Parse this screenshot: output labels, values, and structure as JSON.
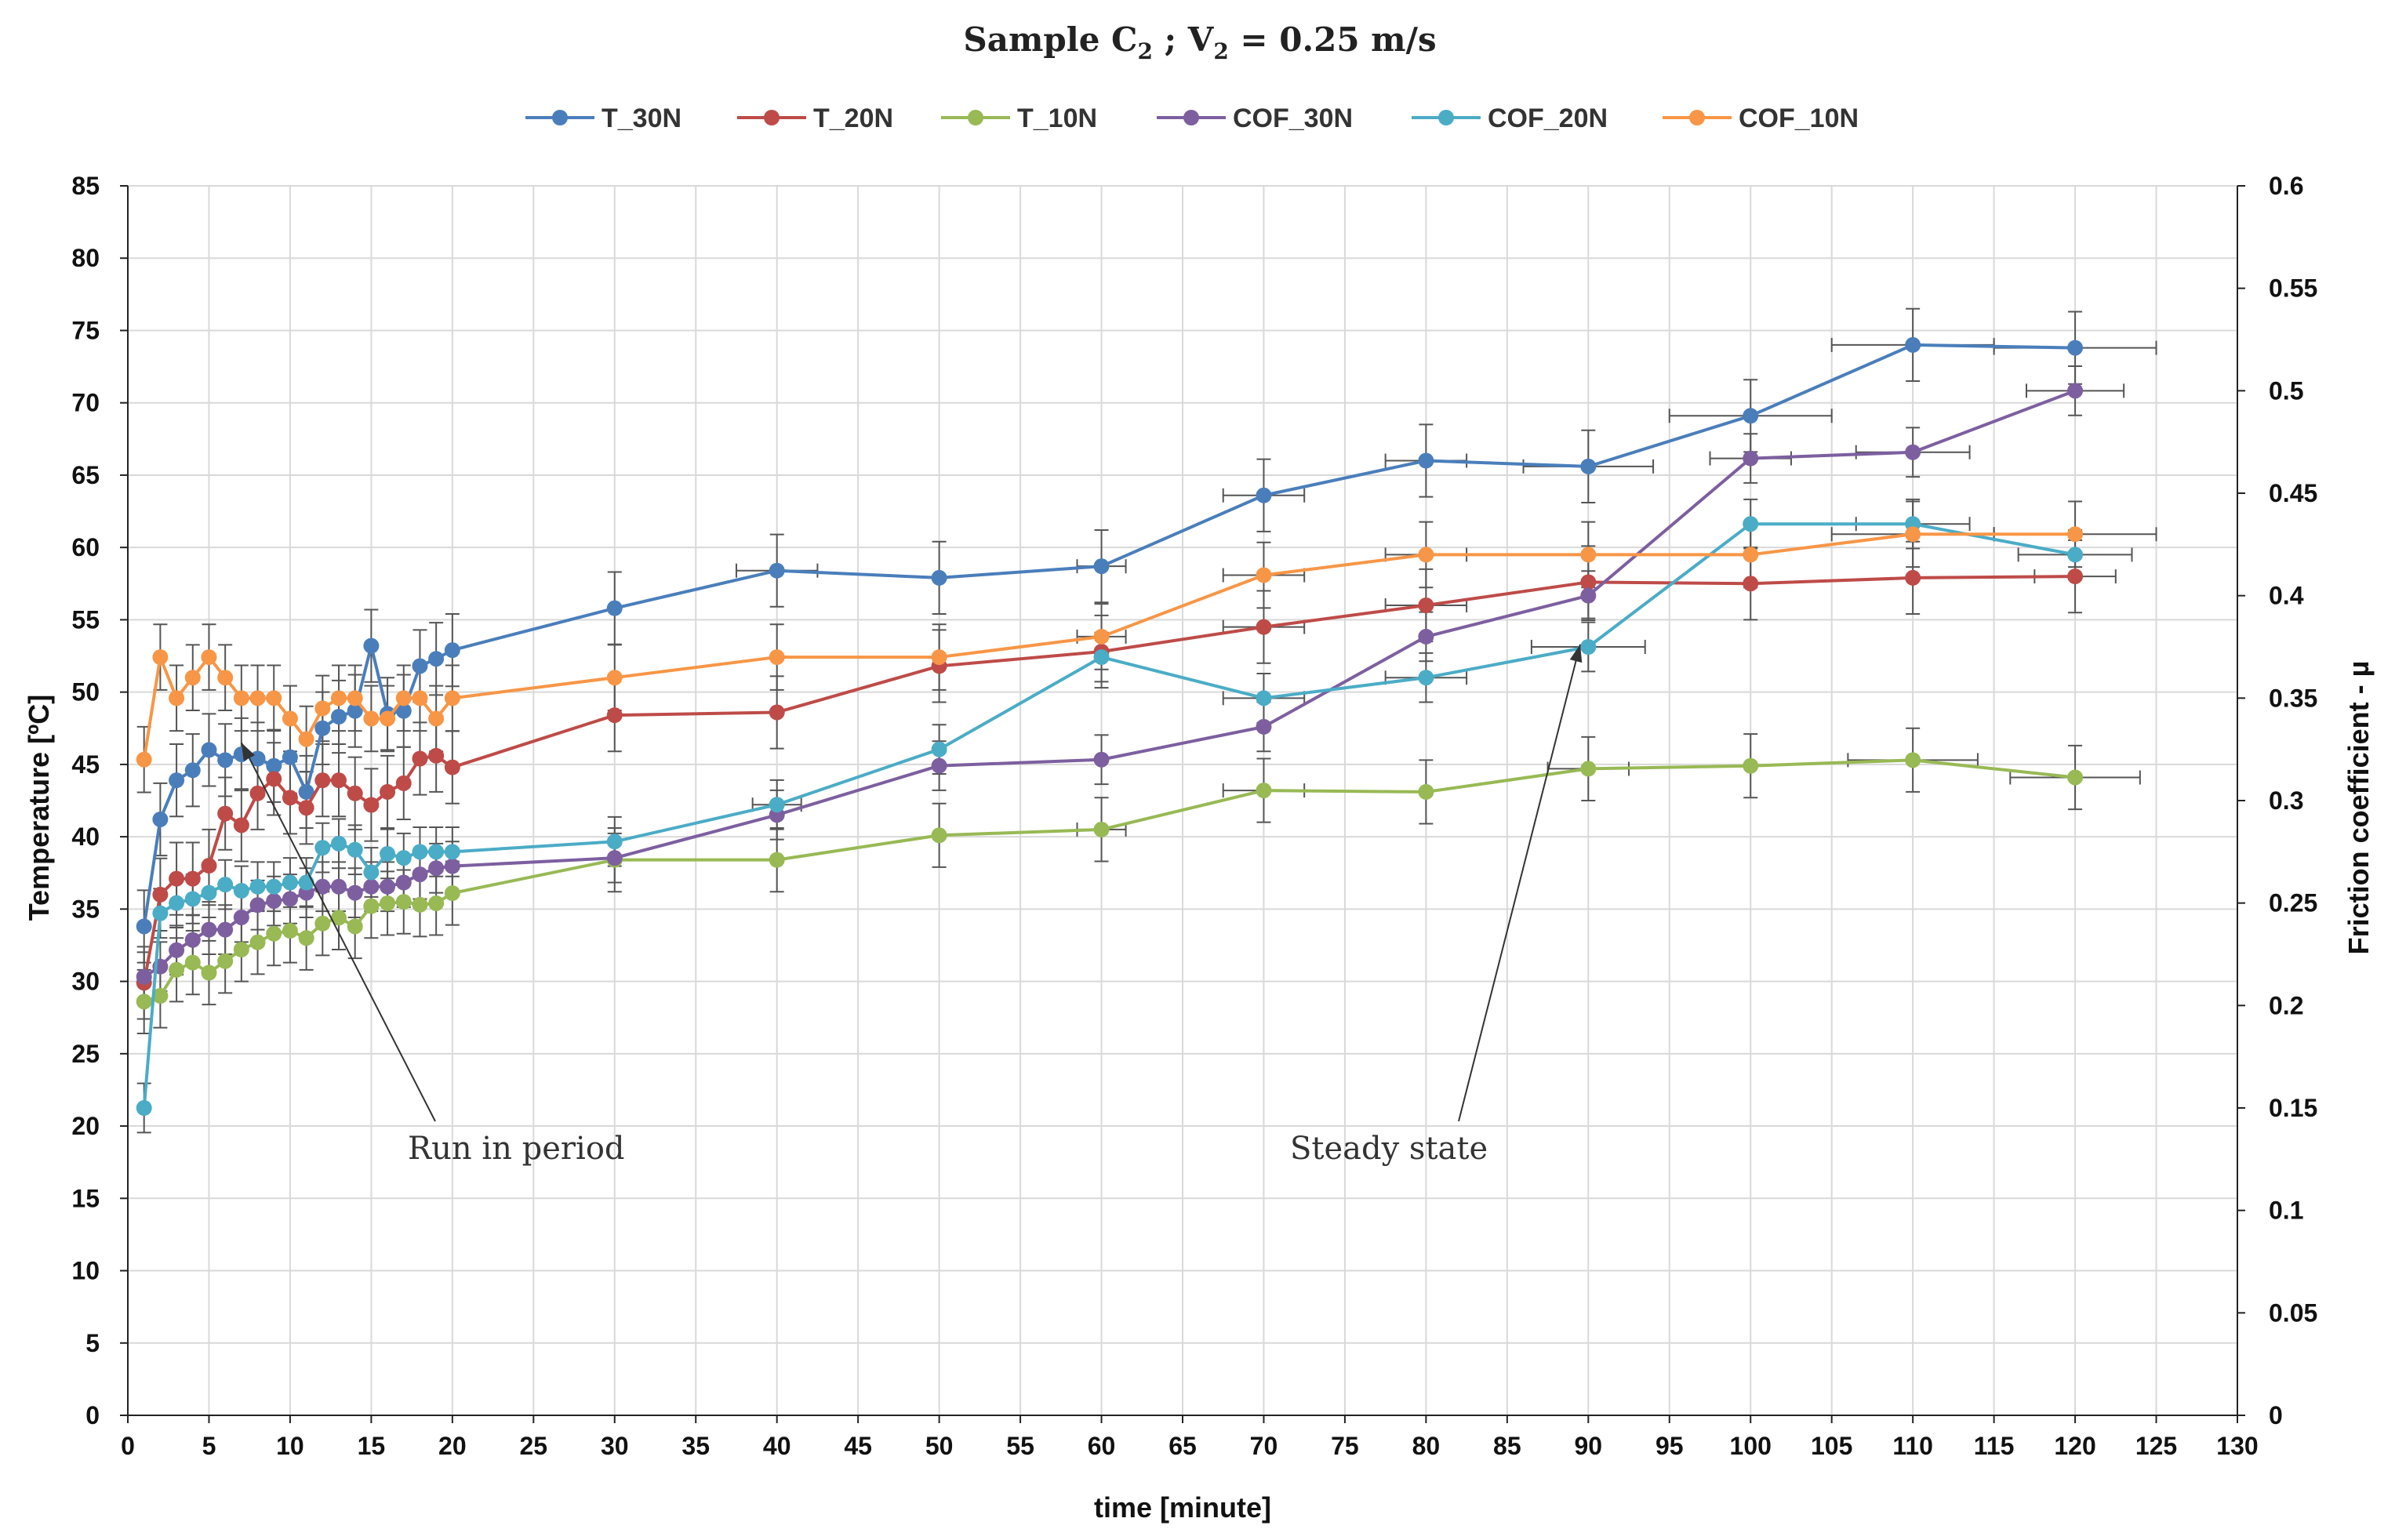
{
  "chart_data": {
    "type": "line",
    "title_prefix": "Sample C",
    "title_sub1": "2",
    "title_mid": " ;  V",
    "title_sub2": "2",
    "title_suffix": " = 0.25 m/s",
    "xlabel": "time [minute]",
    "ylabel_left": "Temperature [ºC]",
    "ylabel_right": "Friction coefficient - µ",
    "xlim": [
      0,
      130
    ],
    "x_ticks": [
      0,
      5,
      10,
      15,
      20,
      25,
      30,
      35,
      40,
      45,
      50,
      55,
      60,
      65,
      70,
      75,
      80,
      85,
      90,
      95,
      100,
      105,
      110,
      115,
      120,
      125,
      130
    ],
    "ylim_left": [
      0,
      85
    ],
    "y_ticks_left": [
      0,
      5,
      10,
      15,
      20,
      25,
      30,
      35,
      40,
      45,
      50,
      55,
      60,
      65,
      70,
      75,
      80,
      85
    ],
    "ylim_right": [
      0,
      0.6
    ],
    "y_ticks_right": [
      "0",
      "0.05",
      "0.1",
      "0.15",
      "0.2",
      "0.25",
      "0.3",
      "0.35",
      "0.4",
      "0.45",
      "0.5",
      "0.55",
      "0.6"
    ],
    "grid": true,
    "legend_position": "top",
    "annotations": [
      {
        "text": "Run in period",
        "points_to": [
          7,
          46.5
        ]
      },
      {
        "text": "Steady state",
        "points_to": [
          89.5,
          53.3
        ]
      }
    ],
    "series": [
      {
        "name": "T_30N",
        "color": "#4a7ebb",
        "axis": "left",
        "y_err": 2.5,
        "x": [
          1,
          2,
          3,
          4,
          5,
          6,
          7,
          8,
          9,
          10,
          11,
          12,
          13,
          14,
          15,
          16,
          17,
          18,
          19,
          20,
          30,
          40,
          50,
          60,
          70,
          80,
          90,
          100,
          110,
          120
        ],
        "y": [
          33.8,
          41.2,
          43.9,
          44.6,
          46.0,
          45.3,
          45.7,
          45.4,
          44.9,
          45.5,
          43.1,
          47.5,
          48.3,
          48.7,
          53.2,
          48.5,
          48.7,
          51.8,
          52.3,
          52.9,
          55.8,
          58.4,
          57.9,
          58.7,
          63.6,
          66.0,
          65.6,
          69.1,
          74.0,
          73.8
        ],
        "x_err": [
          0,
          0,
          0,
          0,
          0,
          0,
          0,
          0,
          0,
          0,
          0,
          0,
          0,
          0,
          0,
          0,
          0,
          0,
          0,
          0,
          0,
          2.5,
          0,
          1.5,
          2.5,
          2.5,
          4,
          5,
          5,
          5
        ]
      },
      {
        "name": "T_20N",
        "color": "#be4b48",
        "axis": "left",
        "y_err": 2.5,
        "x": [
          1,
          2,
          3,
          4,
          5,
          6,
          7,
          8,
          9,
          10,
          11,
          12,
          13,
          14,
          15,
          16,
          17,
          18,
          19,
          20,
          30,
          40,
          50,
          60,
          70,
          80,
          90,
          100,
          110,
          120
        ],
        "y": [
          29.9,
          36.0,
          37.1,
          37.1,
          38.0,
          41.6,
          40.8,
          43.0,
          44.0,
          42.7,
          42.0,
          43.9,
          43.9,
          43.0,
          42.2,
          43.1,
          43.7,
          45.4,
          45.6,
          44.8,
          48.4,
          48.6,
          51.8,
          52.8,
          54.5,
          56.0,
          57.6,
          57.5,
          57.9,
          58.0
        ],
        "x_err": [
          0,
          0,
          0,
          0,
          0,
          0,
          0,
          0,
          0,
          0,
          0,
          0,
          0,
          0,
          0,
          0,
          0,
          0,
          0,
          0,
          0,
          0,
          0,
          0,
          2.5,
          2.5,
          0,
          0,
          0,
          2.5
        ]
      },
      {
        "name": "T_10N",
        "color": "#98b954",
        "axis": "left",
        "y_err": 2.2,
        "x": [
          1,
          2,
          3,
          4,
          5,
          6,
          7,
          8,
          9,
          10,
          11,
          12,
          13,
          14,
          15,
          16,
          17,
          18,
          19,
          20,
          30,
          40,
          50,
          60,
          70,
          80,
          90,
          100,
          110,
          120
        ],
        "y": [
          28.6,
          29.0,
          30.8,
          31.3,
          30.6,
          31.4,
          32.2,
          32.7,
          33.3,
          33.5,
          33.0,
          34.0,
          34.4,
          33.8,
          35.2,
          35.4,
          35.5,
          35.3,
          35.4,
          36.1,
          38.4,
          38.4,
          40.1,
          40.5,
          43.2,
          43.1,
          44.7,
          44.9,
          45.3,
          44.1
        ],
        "x_err": [
          0,
          0,
          0,
          0,
          0,
          0,
          0,
          0,
          0,
          0,
          0,
          0,
          0,
          0,
          0,
          0,
          0,
          0,
          0,
          0,
          0,
          0,
          0,
          1.5,
          2.5,
          0,
          2.5,
          0,
          4,
          4
        ]
      },
      {
        "name": "COF_30N",
        "color": "#7d5fa0",
        "axis": "right",
        "y_err": 0.012,
        "x": [
          1,
          2,
          3,
          4,
          5,
          6,
          7,
          8,
          9,
          10,
          11,
          12,
          13,
          14,
          15,
          16,
          17,
          18,
          19,
          20,
          30,
          40,
          50,
          60,
          70,
          80,
          90,
          100,
          110,
          120
        ],
        "y": [
          0.214,
          0.219,
          0.227,
          0.232,
          0.237,
          0.237,
          0.243,
          0.249,
          0.251,
          0.252,
          0.255,
          0.258,
          0.258,
          0.255,
          0.258,
          0.258,
          0.26,
          0.264,
          0.267,
          0.268,
          0.272,
          0.293,
          0.317,
          0.32,
          0.336,
          0.38,
          0.4,
          0.467,
          0.47,
          0.5
        ],
        "x_err": [
          0,
          0,
          0,
          0,
          0,
          0,
          0,
          0,
          0,
          0,
          0,
          0,
          0,
          0,
          0,
          0,
          0,
          0,
          0,
          0,
          0,
          0,
          0,
          0,
          0,
          0,
          0,
          2.5,
          3.5,
          3
        ]
      },
      {
        "name": "COF_20N",
        "color": "#4bacc6",
        "axis": "right",
        "y_err": 0.012,
        "x": [
          1,
          2,
          3,
          4,
          5,
          6,
          7,
          8,
          9,
          10,
          11,
          12,
          13,
          14,
          15,
          16,
          17,
          18,
          19,
          20,
          30,
          40,
          50,
          60,
          70,
          80,
          90,
          100,
          110,
          120
        ],
        "y": [
          0.15,
          0.245,
          0.25,
          0.252,
          0.255,
          0.259,
          0.256,
          0.258,
          0.258,
          0.26,
          0.26,
          0.277,
          0.279,
          0.276,
          0.265,
          0.274,
          0.272,
          0.275,
          0.275,
          0.275,
          0.28,
          0.298,
          0.325,
          0.37,
          0.35,
          0.36,
          0.375,
          0.435,
          0.435,
          0.42
        ],
        "x_err": [
          0,
          0,
          0,
          0,
          0,
          0,
          0,
          0,
          0,
          0,
          0,
          0,
          0,
          0,
          0,
          0,
          0,
          0,
          0,
          0,
          0,
          1.5,
          0,
          0,
          2.5,
          2.5,
          3.5,
          0,
          3.5,
          3.5
        ]
      },
      {
        "name": "COF_10N",
        "color": "#f79646",
        "axis": "right",
        "y_err": 0.016,
        "x": [
          1,
          2,
          3,
          4,
          5,
          6,
          7,
          8,
          9,
          10,
          11,
          12,
          13,
          14,
          15,
          16,
          17,
          18,
          19,
          20,
          30,
          40,
          50,
          60,
          70,
          80,
          90,
          100,
          110,
          120
        ],
        "y": [
          0.32,
          0.37,
          0.35,
          0.36,
          0.37,
          0.36,
          0.35,
          0.35,
          0.35,
          0.34,
          0.33,
          0.345,
          0.35,
          0.35,
          0.34,
          0.34,
          0.35,
          0.35,
          0.34,
          0.35,
          0.36,
          0.37,
          0.37,
          0.38,
          0.41,
          0.42,
          0.42,
          0.42,
          0.43,
          0.43
        ],
        "x_err": [
          0,
          0,
          0,
          0,
          0,
          0,
          0,
          0,
          0,
          0,
          0,
          0,
          0,
          0,
          0,
          0,
          0,
          0,
          0,
          0,
          0,
          0,
          0,
          1.5,
          2.5,
          2.5,
          0,
          0,
          5,
          5
        ]
      }
    ]
  }
}
